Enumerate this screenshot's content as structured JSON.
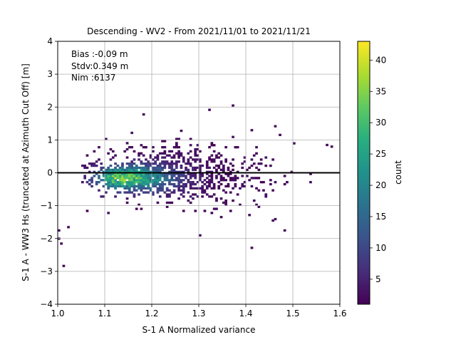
{
  "chart_data": {
    "type": "heatmap",
    "title": "Descending - WV2 - From 2021/11/01 to 2021/11/21",
    "xlabel": "S-1 A Normalized variance",
    "ylabel": "S-1 A - WW3 Hs (truncated at Azimuth Cut Off) [m]",
    "xlim": [
      1.0,
      1.6
    ],
    "ylim": [
      -4,
      4
    ],
    "x_ticks": [
      "1.0",
      "1.1",
      "1.2",
      "1.3",
      "1.4",
      "1.5",
      "1.6"
    ],
    "y_ticks": [
      "4",
      "3",
      "2",
      "1",
      "0",
      "−1",
      "−2",
      "−3",
      "−4"
    ],
    "grid": true,
    "zero_line": 0,
    "annotations": [
      "Bias :-0.09 m",
      "Stdv:0.349 m",
      "Nim :6137"
    ],
    "colorbar": {
      "label": "count",
      "range": [
        1,
        43
      ],
      "ticks": [
        "5",
        "10",
        "15",
        "20",
        "25",
        "30",
        "35",
        "40"
      ],
      "colormap": "viridis"
    },
    "density_peak": {
      "x": 1.13,
      "y": -0.15,
      "count": 43
    },
    "outliers": [
      {
        "x": 1.01,
        "y": -2.83
      },
      {
        "x": 1.0,
        "y": -1.75
      },
      {
        "x": 1.0,
        "y": -2.0
      },
      {
        "x": 1.005,
        "y": -2.15
      },
      {
        "x": 1.02,
        "y": -1.65
      },
      {
        "x": 1.18,
        "y": 1.78
      },
      {
        "x": 1.32,
        "y": 1.92
      },
      {
        "x": 1.37,
        "y": 2.05
      },
      {
        "x": 1.41,
        "y": -2.28
      },
      {
        "x": 1.3,
        "y": -1.9
      },
      {
        "x": 1.58,
        "y": 0.8
      },
      {
        "x": 1.57,
        "y": 0.85
      },
      {
        "x": 1.46,
        "y": 1.42
      },
      {
        "x": 1.41,
        "y": 1.3
      },
      {
        "x": 1.455,
        "y": -1.45
      },
      {
        "x": 1.48,
        "y": -1.75
      },
      {
        "x": 1.5,
        "y": 0.9
      }
    ]
  }
}
